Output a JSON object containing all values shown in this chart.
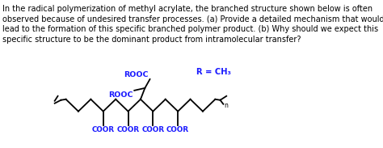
{
  "text_lines": [
    "In the radical polymerization of methyl acrylate, the branched structure shown below is often",
    "observed because of undesired transfer processes. (a) Provide a detailed mechanism that would",
    "lead to the formation of this specific branched polymer product. (b) Why should we expect this",
    "specific structure to be the dominant product from intramolecular transfer?"
  ],
  "bold_a": "(a)",
  "bold_b": "(b)",
  "label_ROOC_top": "ROOC",
  "label_R_eq_CH3": "R = CH₃",
  "label_ROOC_mid": "ROOC",
  "labels_COOR": [
    "COOR",
    "COOR",
    "COOR",
    "COOR"
  ],
  "label_n": "n",
  "text_color": "#000000",
  "blue_color": "#1a1aff",
  "bg_color": "#ffffff",
  "fig_width": 4.74,
  "fig_height": 1.83,
  "dpi": 100
}
